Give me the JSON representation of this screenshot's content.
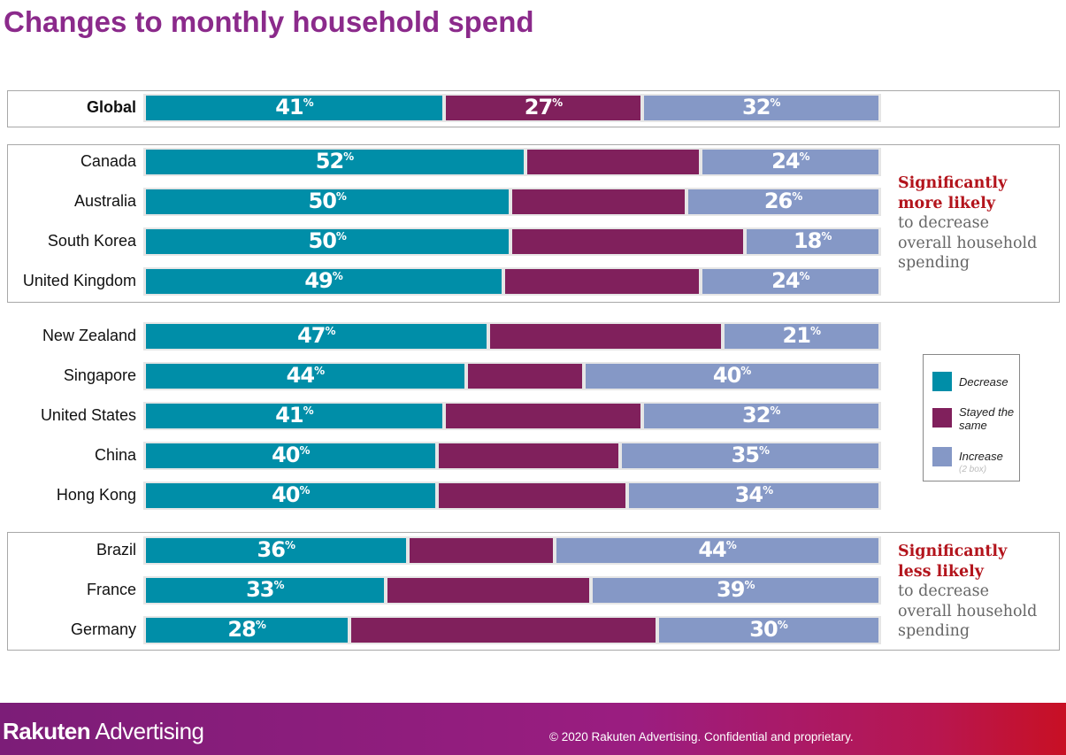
{
  "title": "Changes to monthly household spend",
  "colors": {
    "decrease": "#008ea8",
    "stayed": "#80205c",
    "increase": "#8598c6",
    "title": "#8b2a8b",
    "highlight": "#b3141c"
  },
  "chart_data": {
    "type": "bar",
    "orientation": "horizontal-stacked-100",
    "categories": [
      "Global",
      "Canada",
      "Australia",
      "South Korea",
      "United Kingdom",
      "New Zealand",
      "Singapore",
      "United States",
      "China",
      "Hong Kong",
      "Brazil",
      "France",
      "Germany"
    ],
    "series": [
      {
        "name": "Decrease",
        "values": [
          41,
          52,
          50,
          50,
          49,
          47,
          44,
          41,
          40,
          40,
          36,
          33,
          28
        ]
      },
      {
        "name": "Stayed the same",
        "values": [
          27,
          24,
          24,
          32,
          27,
          32,
          16,
          27,
          25,
          26,
          20,
          28,
          42
        ]
      },
      {
        "name": "Increase",
        "values": [
          32,
          24,
          26,
          18,
          24,
          21,
          40,
          32,
          35,
          34,
          44,
          39,
          30
        ]
      }
    ],
    "printed_labels": {
      "Global": [
        "41",
        "27",
        "32"
      ],
      "Canada": [
        "52",
        "",
        "24"
      ],
      "Australia": [
        "50",
        "",
        "26"
      ],
      "South Korea": [
        "50",
        "",
        "18"
      ],
      "United Kingdom": [
        "49",
        "",
        "24"
      ],
      "New Zealand": [
        "47",
        "",
        "21"
      ],
      "Singapore": [
        "44",
        "",
        "40"
      ],
      "United States": [
        "41",
        "",
        "32"
      ],
      "China": [
        "40",
        "",
        "35"
      ],
      "Hong Kong": [
        "40",
        "",
        "34"
      ],
      "Brazil": [
        "36",
        "",
        "44"
      ],
      "France": [
        "33",
        "",
        "39"
      ],
      "Germany": [
        "28",
        "",
        "30"
      ]
    },
    "percent_sign": "%",
    "bold_categories": [
      "Global"
    ],
    "legend": {
      "position": "right",
      "items": [
        {
          "label": "Decrease",
          "color": "#008ea8"
        },
        {
          "label": "Stayed the same",
          "color": "#80205c"
        },
        {
          "label": "Increase",
          "sub": "(2 box)",
          "color": "#8598c6"
        }
      ]
    }
  },
  "notes": {
    "more": {
      "highlight": [
        "Significantly",
        "more likely"
      ],
      "normal": [
        "to decrease",
        "overall household",
        "spending"
      ]
    },
    "less": {
      "highlight": [
        "Significantly",
        "less likely"
      ],
      "normal": [
        "to decrease",
        "overall household",
        "spending"
      ]
    }
  },
  "footer": {
    "brand_bold": "Rakuten",
    "brand_light": " Advertising",
    "copyright": "© 2020 Rakuten Advertising. Confidential and proprietary."
  }
}
